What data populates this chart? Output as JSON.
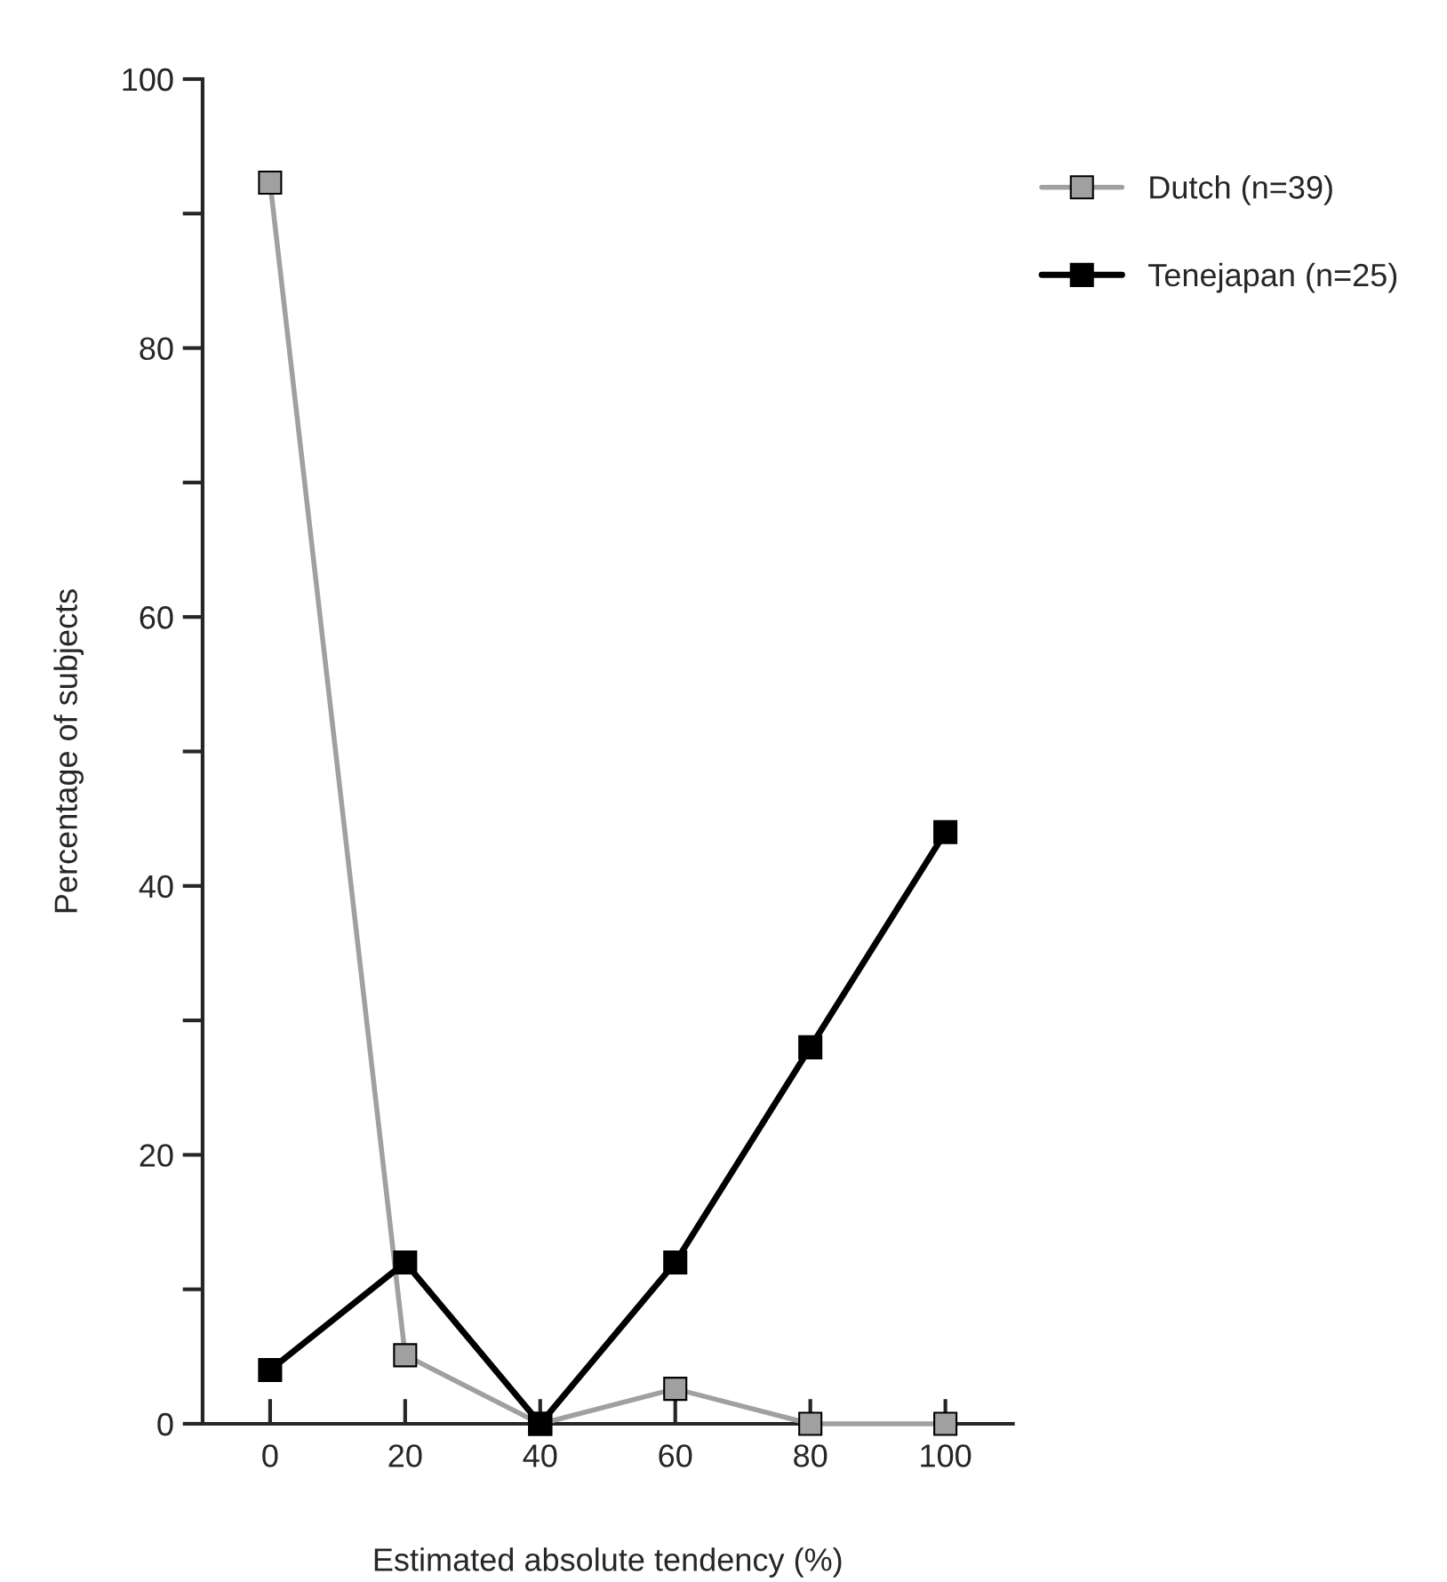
{
  "chart_data": {
    "type": "line",
    "xlabel": "Estimated absolute tendency (%)",
    "ylabel": "Percentage of subjects",
    "x": [
      0,
      20,
      40,
      60,
      80,
      100
    ],
    "series": [
      {
        "name": "Dutch (n=39)",
        "color": "#a0a0a0",
        "values": [
          92.3,
          5.1,
          0,
          2.6,
          0,
          0
        ],
        "marker": "square"
      },
      {
        "name": "Tenejapan (n=25)",
        "color": "#000000",
        "values": [
          4,
          12,
          0,
          12,
          28,
          44
        ],
        "marker": "square"
      }
    ],
    "xlim": [
      -10,
      110
    ],
    "xticks": [
      0,
      20,
      40,
      60,
      80,
      100
    ],
    "ylim": [
      0,
      100
    ],
    "yticks": [
      0,
      {
        "value": 10,
        "label": null
      },
      20,
      {
        "value": 30,
        "label": null
      },
      40,
      {
        "value": 50,
        "label": null
      },
      60,
      {
        "value": 70,
        "label": null
      },
      80,
      {
        "value": 90,
        "label": null
      },
      100
    ],
    "grid": false,
    "legend": "top right",
    "line_style": "solid"
  }
}
